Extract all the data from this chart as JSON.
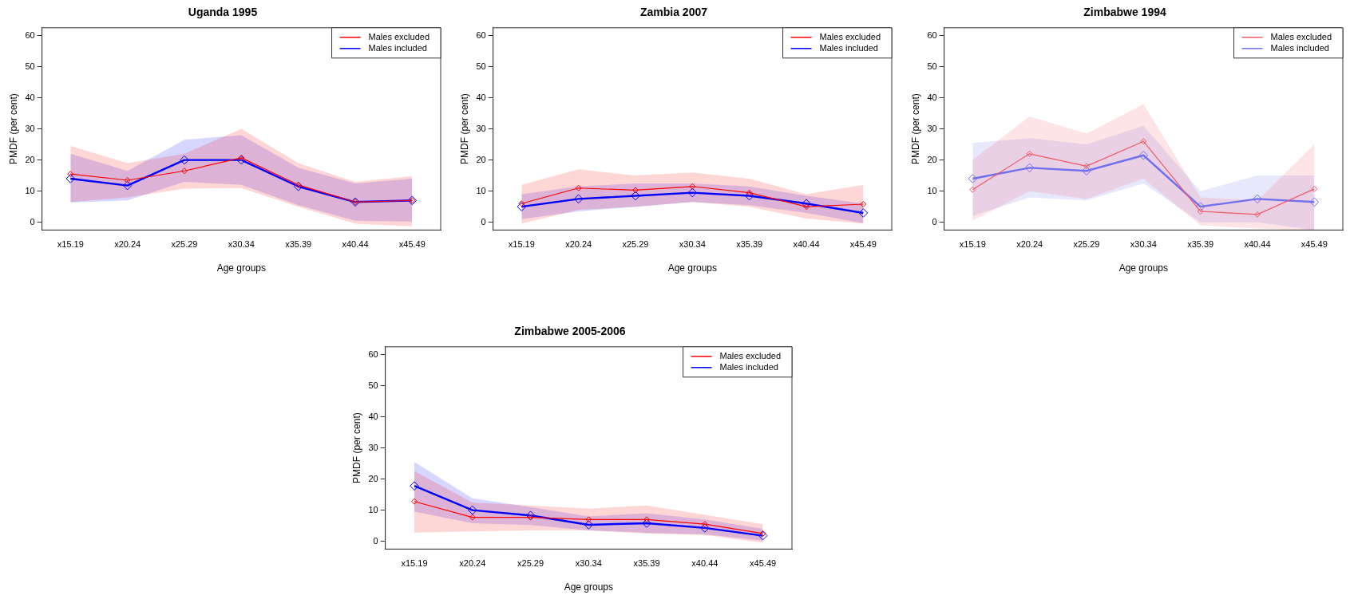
{
  "chart_data": [
    {
      "type": "line",
      "title": "Uganda 1995",
      "xlabel": "Age groups",
      "ylabel": "PMDF (per cent)",
      "categories": [
        "x15.19",
        "x20.24",
        "x25.29",
        "x30.34",
        "x35.39",
        "x40.44",
        "x45.49"
      ],
      "ylim": [
        -2.5,
        62.5
      ],
      "yticks": [
        0,
        10,
        20,
        30,
        40,
        50,
        60
      ],
      "grid": false,
      "legend": "top right",
      "marker": "diamond",
      "line_style": "solid",
      "series": [
        {
          "name": "Males excluded",
          "color": "#ff0000",
          "values": [
            15.5,
            13.5,
            16.5,
            20.7,
            12,
            6.5,
            7
          ],
          "lower": [
            6.5,
            8,
            10.8,
            11,
            5,
            -0.5,
            -1.3
          ],
          "upper": [
            24.5,
            19,
            22,
            30,
            19,
            13,
            14.8
          ]
        },
        {
          "name": "Males included",
          "color": "#0000ff",
          "values": [
            14,
            11.8,
            20,
            20,
            11.5,
            6.5,
            7
          ],
          "lower": [
            6.3,
            7,
            13,
            12,
            5.5,
            0.5,
            0.2
          ],
          "upper": [
            22,
            16.5,
            26.5,
            28,
            17.5,
            12.5,
            14
          ]
        }
      ]
    },
    {
      "type": "line",
      "title": "Zambia 2007",
      "xlabel": "Age groups",
      "ylabel": "PMDF (per cent)",
      "categories": [
        "x15.19",
        "x20.24",
        "x25.29",
        "x30.34",
        "x35.39",
        "x40.44",
        "x45.49"
      ],
      "ylim": [
        -2.5,
        62.5
      ],
      "yticks": [
        0,
        10,
        20,
        30,
        40,
        50,
        60
      ],
      "grid": false,
      "legend": "top right",
      "marker": "diamond",
      "line_style": "solid",
      "series": [
        {
          "name": "Males excluded",
          "color": "#ff0000",
          "values": [
            6,
            11,
            10.3,
            11.5,
            9.5,
            5,
            5.8
          ],
          "lower": [
            -0.5,
            4,
            5,
            6.5,
            5,
            1.2,
            -0.5
          ],
          "upper": [
            12,
            17,
            15,
            16,
            14,
            9,
            12
          ]
        },
        {
          "name": "Males included",
          "color": "#0000ff",
          "values": [
            5,
            7.5,
            8.5,
            9.5,
            8.5,
            6,
            3
          ],
          "lower": [
            1,
            3.5,
            5,
            6.5,
            5.5,
            3,
            -0.3
          ],
          "upper": [
            9,
            11.5,
            12.5,
            12.5,
            11.5,
            8.5,
            6
          ]
        }
      ]
    },
    {
      "type": "line",
      "title": "Zimbabwe 1994",
      "xlabel": "Age groups",
      "ylabel": "PMDF (per cent)",
      "categories": [
        "x15.19",
        "x20.24",
        "x25.29",
        "x30.34",
        "x35.39",
        "x40.44",
        "x45.49"
      ],
      "ylim": [
        -2.5,
        62.5
      ],
      "yticks": [
        0,
        10,
        20,
        30,
        40,
        50,
        60
      ],
      "grid": false,
      "legend": "top right",
      "marker": "diamond",
      "line_style": "solid",
      "series": [
        {
          "name": "Males excluded",
          "color": "#f05a64",
          "values": [
            10.5,
            22,
            18,
            26,
            3.5,
            2.5,
            10.7
          ],
          "lower": [
            0.5,
            10,
            7.5,
            14,
            -1,
            -2,
            -2.5
          ],
          "upper": [
            20,
            34,
            28.5,
            38,
            8,
            7,
            25
          ]
        },
        {
          "name": "Males included",
          "color": "#7070f0",
          "values": [
            14,
            17.5,
            16.5,
            21.5,
            5,
            7.5,
            6.5
          ],
          "lower": [
            2,
            8,
            7,
            12.5,
            0,
            0,
            -2.5
          ],
          "upper": [
            25.5,
            27,
            25,
            31,
            10,
            15,
            15
          ]
        }
      ]
    },
    {
      "type": "line",
      "title": "Zimbabwe 2005-2006",
      "xlabel": "Age groups",
      "ylabel": "PMDF (per cent)",
      "categories": [
        "x15.19",
        "x20.24",
        "x25.29",
        "x30.34",
        "x35.39",
        "x40.44",
        "x45.49"
      ],
      "ylim": [
        -2.5,
        62.5
      ],
      "yticks": [
        0,
        10,
        20,
        30,
        40,
        50,
        60
      ],
      "grid": false,
      "legend": "top right",
      "marker": "diamond",
      "line_style": "solid",
      "series": [
        {
          "name": "Males excluded",
          "color": "#ff0000",
          "values": [
            12.8,
            7.7,
            7.7,
            7,
            7,
            5.5,
            2.5
          ],
          "lower": [
            2.8,
            3.2,
            3.5,
            3.5,
            2.5,
            2,
            -0.5
          ],
          "upper": [
            22.5,
            12.5,
            11.5,
            10.5,
            11.5,
            8.5,
            5.5
          ]
        },
        {
          "name": "Males included",
          "color": "#0000ff",
          "values": [
            17.8,
            10,
            8.3,
            5.3,
            5.8,
            4.3,
            1.8
          ],
          "lower": [
            9.5,
            5.8,
            5.2,
            3.5,
            2.7,
            2.2,
            0.2
          ],
          "upper": [
            25.5,
            13.8,
            11,
            8,
            9,
            7,
            4
          ]
        }
      ]
    }
  ]
}
